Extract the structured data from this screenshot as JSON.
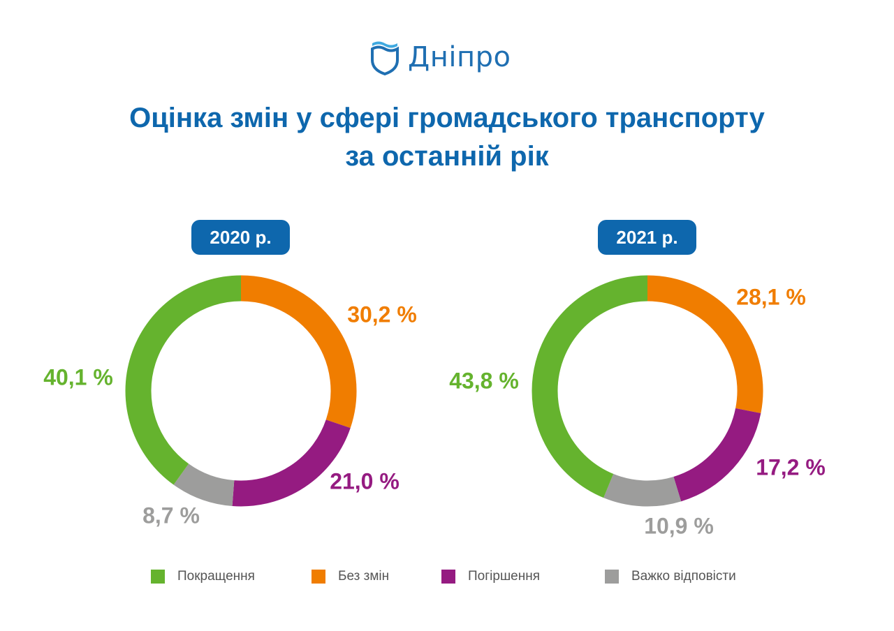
{
  "header": {
    "logo_text": "Дніпро",
    "title_line1": "Оцінка змін у сфері громадського транспорту",
    "title_line2": "за останній рік"
  },
  "colors": {
    "improved": "#65b32e",
    "no_change": "#f07d00",
    "worse": "#951b81",
    "hard": "#9d9d9c",
    "brand": "#0e67ad"
  },
  "legend": [
    {
      "label": "Покращення",
      "color_key": "improved"
    },
    {
      "label": "Без змін",
      "color_key": "no_change"
    },
    {
      "label": "Погіршення",
      "color_key": "worse"
    },
    {
      "label": "Важко відповісти",
      "color_key": "hard"
    }
  ],
  "chart_data": [
    {
      "type": "pie",
      "badge": "2020 р.",
      "categories": [
        "Покращення",
        "Без змін",
        "Погіршення",
        "Важко відповісти"
      ],
      "values": [
        40.1,
        30.2,
        21.0,
        8.7
      ],
      "labels": [
        "40,1 %",
        "30,2 %",
        "21,0 %",
        "8,7 %"
      ]
    },
    {
      "type": "pie",
      "badge": "2021 р.",
      "categories": [
        "Покращення",
        "Без змін",
        "Погіршення",
        "Важко відповісти"
      ],
      "values": [
        43.8,
        28.1,
        17.2,
        10.9
      ],
      "labels": [
        "43,8 %",
        "28,1 %",
        "17,2 %",
        "10,9 %"
      ]
    }
  ]
}
